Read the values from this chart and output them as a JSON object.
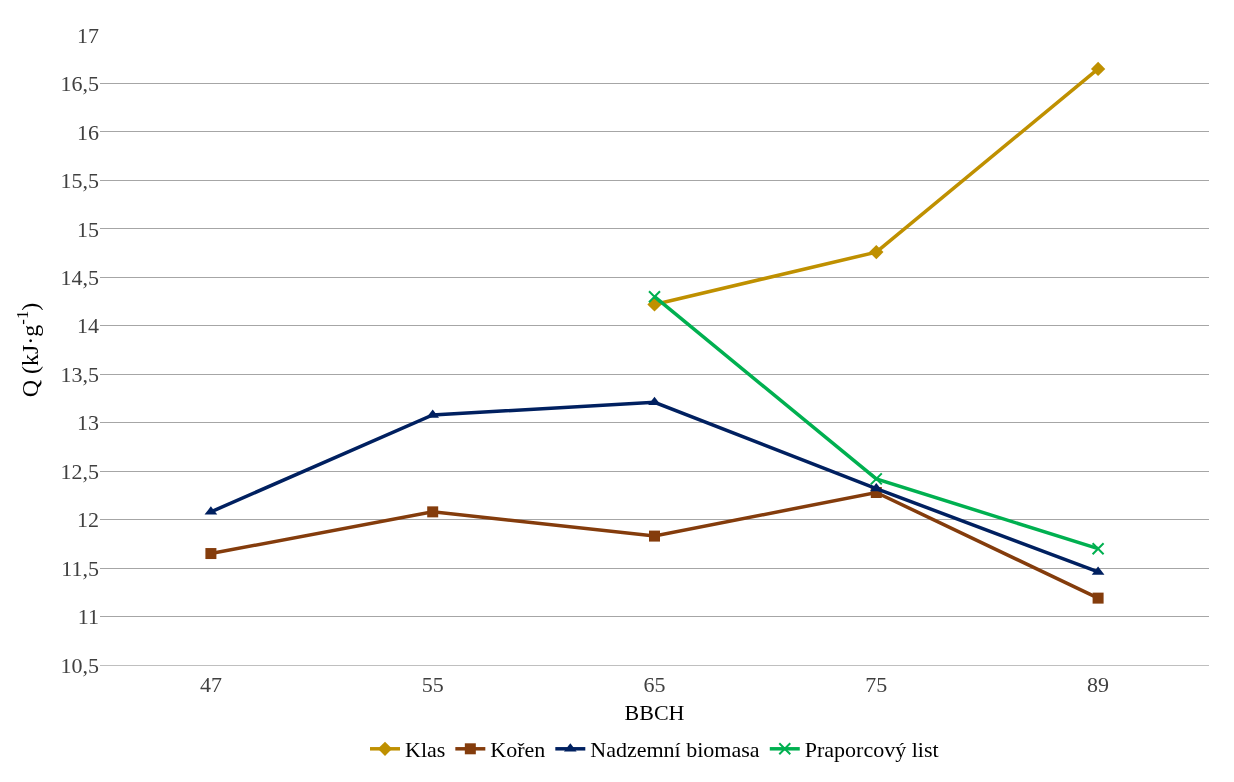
{
  "chart_data": {
    "type": "line",
    "xlabel": "BBCH",
    "ylabel": "Q (kJ·g$^{-1}$)",
    "categories": [
      "47",
      "55",
      "65",
      "75",
      "89"
    ],
    "series": [
      {
        "name": "Klas",
        "color": "#bf9000",
        "marker": "diamond",
        "values": [
          null,
          null,
          14.22,
          14.76,
          16.65
        ]
      },
      {
        "name": "Kořen",
        "color": "#843c0c",
        "marker": "square",
        "values": [
          11.65,
          12.08,
          11.83,
          12.28,
          11.19
        ]
      },
      {
        "name": "Nadzemní biomasa",
        "color": "#002060",
        "marker": "triangle",
        "values": [
          12.08,
          13.08,
          13.21,
          12.32,
          11.46
        ]
      },
      {
        "name": "Praporcový list",
        "color": "#00b050",
        "marker": "cross",
        "values": [
          null,
          null,
          14.3,
          12.42,
          11.7
        ]
      }
    ],
    "ylim": [
      10.5,
      17
    ],
    "yticks": [
      {
        "value": 10.5,
        "label": "10,5"
      },
      11,
      {
        "value": 11.5,
        "label": "11,5"
      },
      12,
      {
        "value": 12.5,
        "label": "12,5"
      },
      13,
      {
        "value": 13.5,
        "label": "13,5"
      },
      14,
      {
        "value": 14.5,
        "label": "14,5"
      },
      15,
      {
        "value": 15.5,
        "label": "15,5"
      },
      16,
      {
        "value": 16.5,
        "label": "16,5"
      },
      17
    ],
    "grid": "y",
    "legend": "bottom",
    "line_style": "solid"
  }
}
